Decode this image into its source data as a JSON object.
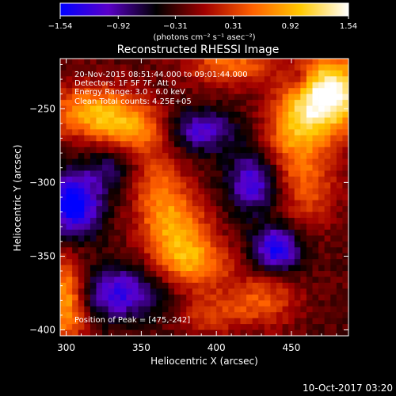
{
  "chart_data": {
    "type": "heatmap",
    "title": "Reconstructed RHESSI Image",
    "xlabel": "Heliocentric X (arcsec)",
    "ylabel": "Heliocentric Y (arcsec)",
    "xlim": [
      296,
      488
    ],
    "ylim": [
      -404,
      -216
    ],
    "x_ticks": [
      300,
      350,
      400,
      450
    ],
    "y_ticks": [
      -250,
      -300,
      -350,
      -400
    ],
    "x_tick_labels": [
      "300",
      "350",
      "400",
      "450"
    ],
    "y_tick_labels": [
      "−250",
      "−300",
      "−350",
      "−400"
    ],
    "colorbar": {
      "ticks": [
        -1.54,
        -0.92,
        -0.31,
        0.31,
        0.92,
        1.54
      ],
      "tick_labels": [
        "−1.54",
        "−0.92",
        "−0.31",
        "0.31",
        "0.92",
        "1.54"
      ],
      "unit_label": "(photons cm⁻² s⁻¹ asec⁻²)",
      "colormap": [
        "#0000ff",
        "#5a00c8",
        "#000000",
        "#a00000",
        "#ff6000",
        "#ffc800",
        "#ffffff"
      ]
    },
    "annotations": [
      "20-Nov-2015 08:51:44.000 to 09:01:44.000",
      "Detectors: 1F 5F 7F, Att 0",
      "Energy Range: 3.0 - 6.0 keV",
      "Clean    Total counts: 4.25E+05"
    ],
    "peak_label": "Position of Peak = [475,-242]",
    "peak": [
      475,
      -242
    ],
    "grid": false
  },
  "footer": {
    "timestamp": "10-Oct-2017 03:20"
  }
}
